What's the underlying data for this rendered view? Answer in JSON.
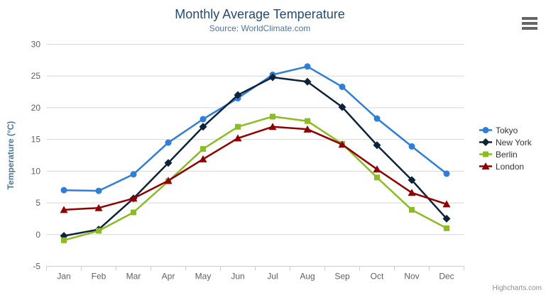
{
  "header": {
    "title": "Monthly Average Temperature",
    "subtitle": "Source: WorldClimate.com"
  },
  "credits": {
    "label": "Highcharts.com"
  },
  "menu_icon": "hamburger-icon",
  "colors": {
    "title": "#274b6d",
    "subtitle": "#4d759e",
    "axis_title": "#4d759e",
    "tick_label": "#606060",
    "gridline": "#d8d8d8",
    "axis_line": "#c0d0e0",
    "legend_text": "#333333"
  },
  "chart_data": {
    "type": "line",
    "title": "Monthly Average Temperature",
    "subtitle": "Source: WorldClimate.com",
    "xlabel": "",
    "ylabel": "Temperature (°C)",
    "ylim": [
      -5,
      30
    ],
    "ytick_interval": 5,
    "grid": true,
    "legend_position": "right",
    "categories": [
      "Jan",
      "Feb",
      "Mar",
      "Apr",
      "May",
      "Jun",
      "Jul",
      "Aug",
      "Sep",
      "Oct",
      "Nov",
      "Dec"
    ],
    "series": [
      {
        "name": "Tokyo",
        "color": "#2f7ed8",
        "marker": "circle",
        "values": [
          7.0,
          6.9,
          9.5,
          14.5,
          18.2,
          21.5,
          25.2,
          26.5,
          23.3,
          18.3,
          13.9,
          9.6
        ]
      },
      {
        "name": "New York",
        "color": "#0d233a",
        "marker": "diamond",
        "values": [
          -0.2,
          0.8,
          5.7,
          11.3,
          17.0,
          22.0,
          24.8,
          24.1,
          20.1,
          14.1,
          8.6,
          2.5
        ]
      },
      {
        "name": "Berlin",
        "color": "#8bbc21",
        "marker": "square",
        "values": [
          -0.9,
          0.6,
          3.5,
          8.4,
          13.5,
          17.0,
          18.6,
          17.9,
          14.3,
          9.0,
          3.9,
          1.0
        ]
      },
      {
        "name": "London",
        "color": "#910000",
        "marker": "triangle",
        "values": [
          3.9,
          4.2,
          5.7,
          8.5,
          11.9,
          15.2,
          17.0,
          16.6,
          14.2,
          10.3,
          6.6,
          4.8
        ]
      }
    ]
  }
}
